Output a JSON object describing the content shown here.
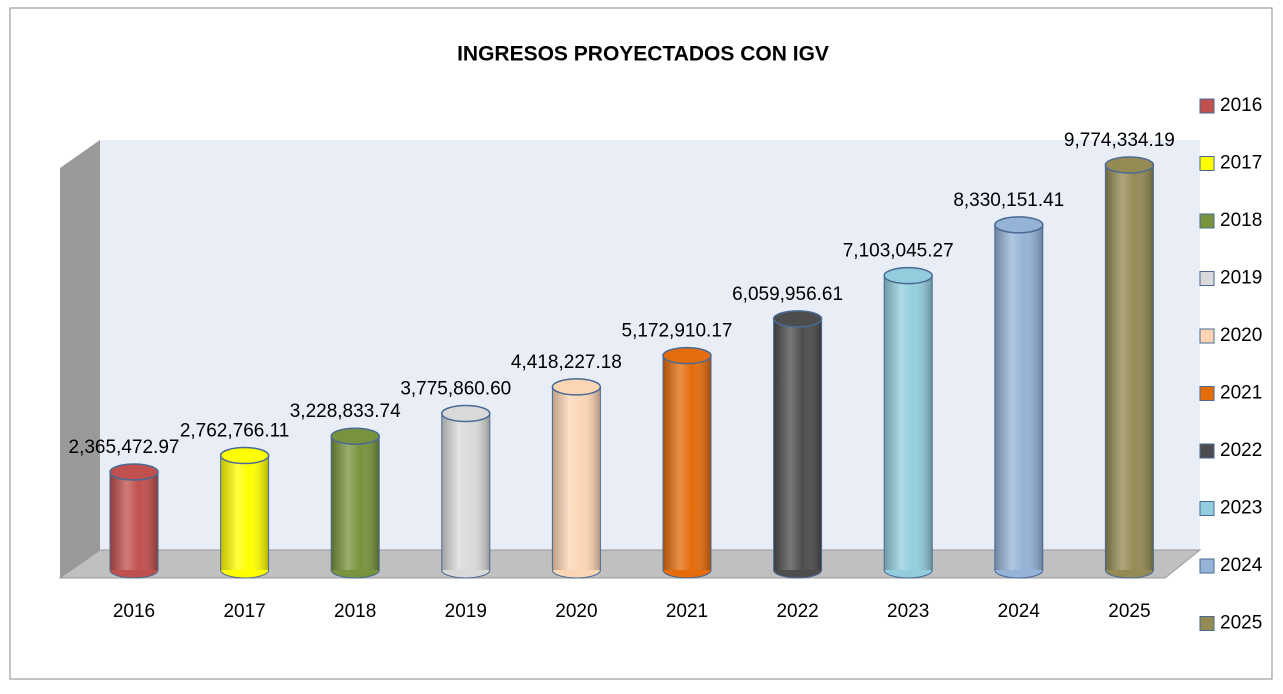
{
  "chart_data": {
    "type": "bar3d",
    "title": "INGRESOS PROYECTADOS CON IGV",
    "categories": [
      "2016",
      "2017",
      "2018",
      "2019",
      "2020",
      "2021",
      "2022",
      "2023",
      "2024",
      "2025"
    ],
    "values": [
      2365472.97,
      2762766.11,
      3228833.74,
      3775860.6,
      4418227.18,
      5172910.17,
      6059956.61,
      7103045.27,
      8330151.41,
      9774334.19
    ],
    "value_labels": [
      "2,365,472.97",
      "2,762,766.11",
      "3,228,833.74",
      "3,775,860.60",
      "4,418,227.18",
      "5,172,910.17",
      "6,059,956.61",
      "7,103,045.27",
      "8,330,151.41",
      "9,774,334.19"
    ],
    "colors": [
      "#c0504d",
      "#ffff00",
      "#77933c",
      "#d9d9d9",
      "#fcd5b5",
      "#e46c0a",
      "#4d4d4d",
      "#93cddd",
      "#95b3d7",
      "#948a54"
    ],
    "legend": "right"
  }
}
